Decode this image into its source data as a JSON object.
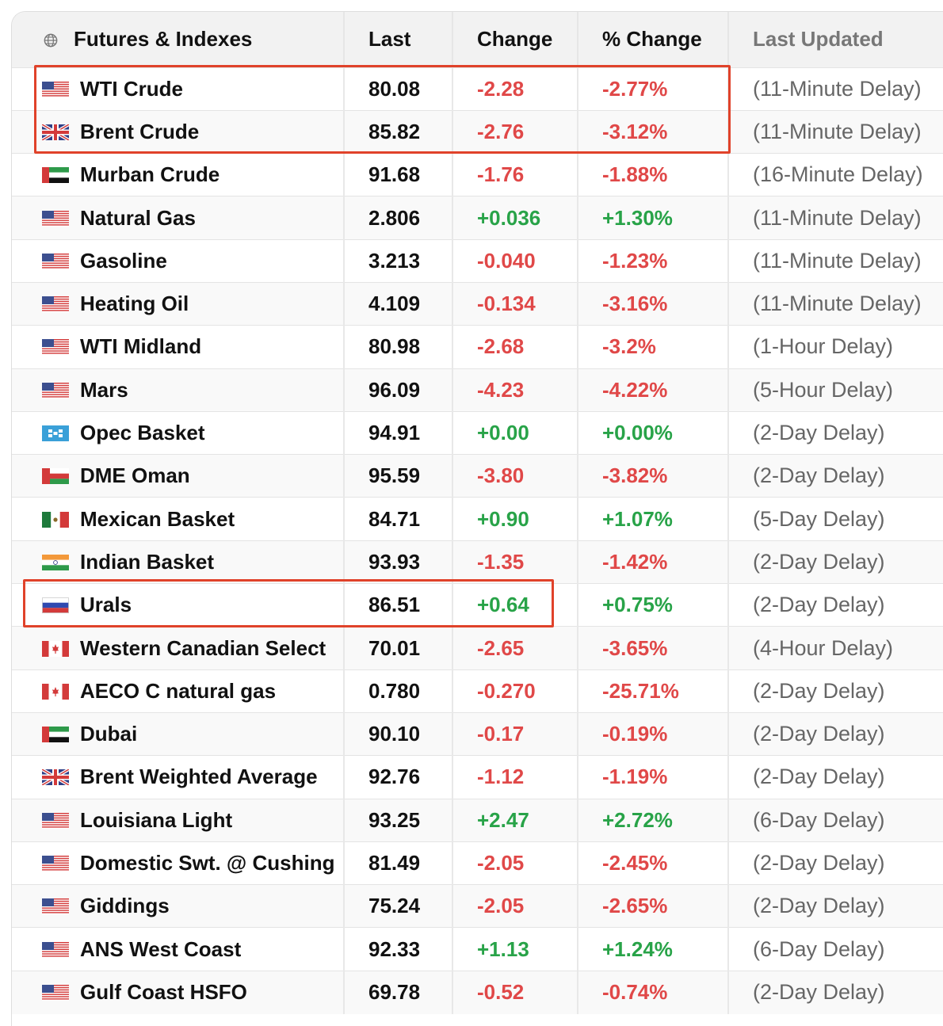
{
  "header": {
    "name": "Futures & Indexes",
    "last": "Last",
    "change": "Change",
    "pct": "% Change",
    "updated": "Last Updated",
    "icon": "globe-icon"
  },
  "colors": {
    "negative": "#e04848",
    "positive": "#28a348",
    "highlight": "#e0422a"
  },
  "rows": [
    {
      "flag": "us",
      "name": "WTI Crude",
      "last": "80.08",
      "change": "-2.28",
      "pct": "-2.77%",
      "updated": "(11-Minute Delay)",
      "dir": "neg"
    },
    {
      "flag": "uk",
      "name": "Brent Crude",
      "last": "85.82",
      "change": "-2.76",
      "pct": "-3.12%",
      "updated": "(11-Minute Delay)",
      "dir": "neg"
    },
    {
      "flag": "ae",
      "name": "Murban Crude",
      "last": "91.68",
      "change": "-1.76",
      "pct": "-1.88%",
      "updated": "(16-Minute Delay)",
      "dir": "neg"
    },
    {
      "flag": "us",
      "name": "Natural Gas",
      "last": "2.806",
      "change": "+0.036",
      "pct": "+1.30%",
      "updated": "(11-Minute Delay)",
      "dir": "pos"
    },
    {
      "flag": "us",
      "name": "Gasoline",
      "last": "3.213",
      "change": "-0.040",
      "pct": "-1.23%",
      "updated": "(11-Minute Delay)",
      "dir": "neg"
    },
    {
      "flag": "us",
      "name": "Heating Oil",
      "last": "4.109",
      "change": "-0.134",
      "pct": "-3.16%",
      "updated": "(11-Minute Delay)",
      "dir": "neg"
    },
    {
      "flag": "us",
      "name": "WTI Midland",
      "last": "80.98",
      "change": "-2.68",
      "pct": "-3.2%",
      "updated": "(1-Hour Delay)",
      "dir": "neg"
    },
    {
      "flag": "us",
      "name": "Mars",
      "last": "96.09",
      "change": "-4.23",
      "pct": "-4.22%",
      "updated": "(5-Hour Delay)",
      "dir": "neg"
    },
    {
      "flag": "opec",
      "name": "Opec Basket",
      "last": "94.91",
      "change": "+0.00",
      "pct": "+0.00%",
      "updated": "(2-Day Delay)",
      "dir": "pos"
    },
    {
      "flag": "om",
      "name": "DME Oman",
      "last": "95.59",
      "change": "-3.80",
      "pct": "-3.82%",
      "updated": "(2-Day Delay)",
      "dir": "neg"
    },
    {
      "flag": "mx",
      "name": "Mexican Basket",
      "last": "84.71",
      "change": "+0.90",
      "pct": "+1.07%",
      "updated": "(5-Day Delay)",
      "dir": "pos"
    },
    {
      "flag": "in",
      "name": "Indian Basket",
      "last": "93.93",
      "change": "-1.35",
      "pct": "-1.42%",
      "updated": "(2-Day Delay)",
      "dir": "neg"
    },
    {
      "flag": "ru",
      "name": "Urals",
      "last": "86.51",
      "change": "+0.64",
      "pct": "+0.75%",
      "updated": "(2-Day Delay)",
      "dir": "pos"
    },
    {
      "flag": "ca",
      "name": "Western Canadian Select",
      "last": "70.01",
      "change": "-2.65",
      "pct": "-3.65%",
      "updated": "(4-Hour Delay)",
      "dir": "neg"
    },
    {
      "flag": "ca",
      "name": "AECO C natural gas",
      "last": "0.780",
      "change": "-0.270",
      "pct": "-25.71%",
      "updated": "(2-Day Delay)",
      "dir": "neg"
    },
    {
      "flag": "ae",
      "name": "Dubai",
      "last": "90.10",
      "change": "-0.17",
      "pct": "-0.19%",
      "updated": "(2-Day Delay)",
      "dir": "neg"
    },
    {
      "flag": "uk",
      "name": "Brent Weighted Average",
      "last": "92.76",
      "change": "-1.12",
      "pct": "-1.19%",
      "updated": "(2-Day Delay)",
      "dir": "neg"
    },
    {
      "flag": "us",
      "name": "Louisiana Light",
      "last": "93.25",
      "change": "+2.47",
      "pct": "+2.72%",
      "updated": "(6-Day Delay)",
      "dir": "pos"
    },
    {
      "flag": "us",
      "name": "Domestic Swt. @ Cushing",
      "last": "81.49",
      "change": "-2.05",
      "pct": "-2.45%",
      "updated": "(2-Day Delay)",
      "dir": "neg"
    },
    {
      "flag": "us",
      "name": "Giddings",
      "last": "75.24",
      "change": "-2.05",
      "pct": "-2.65%",
      "updated": "(2-Day Delay)",
      "dir": "neg"
    },
    {
      "flag": "us",
      "name": "ANS West Coast",
      "last": "92.33",
      "change": "+1.13",
      "pct": "+1.24%",
      "updated": "(6-Day Delay)",
      "dir": "pos"
    },
    {
      "flag": "us",
      "name": "Gulf Coast HSFO",
      "last": "69.78",
      "change": "-0.52",
      "pct": "-0.74%",
      "updated": "(2-Day Delay)",
      "dir": "neg"
    }
  ]
}
